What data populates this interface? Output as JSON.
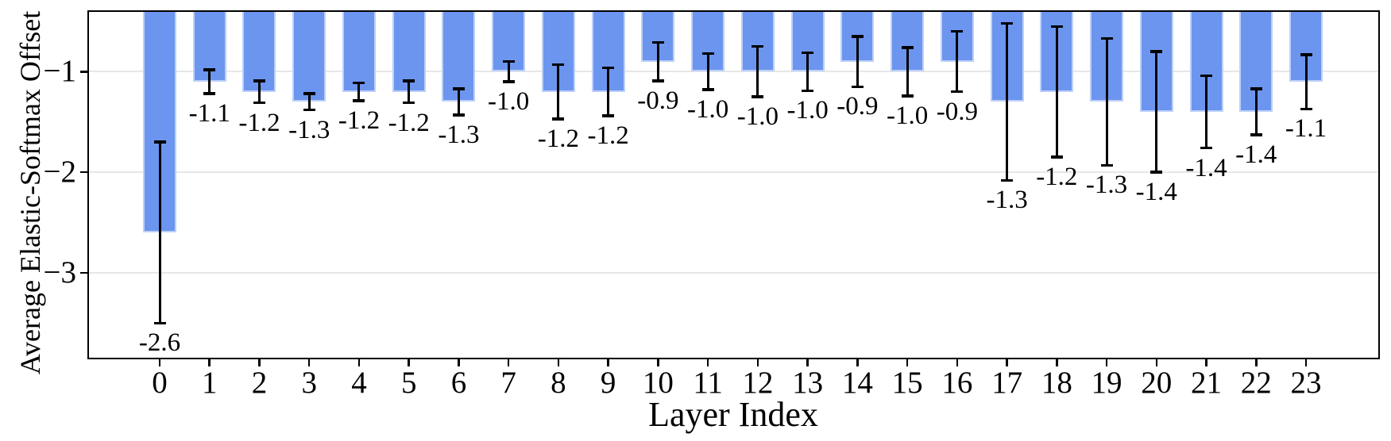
{
  "chart_data": {
    "type": "bar",
    "title": "",
    "xlabel": "Layer Index",
    "ylabel": "Average Elastic-Softmax Offset",
    "categories": [
      "0",
      "1",
      "2",
      "3",
      "4",
      "5",
      "6",
      "7",
      "8",
      "9",
      "10",
      "11",
      "12",
      "13",
      "14",
      "15",
      "16",
      "17",
      "18",
      "19",
      "20",
      "21",
      "22",
      "23"
    ],
    "values": [
      -2.6,
      -1.1,
      -1.2,
      -1.3,
      -1.2,
      -1.2,
      -1.3,
      -1.0,
      -1.2,
      -1.2,
      -0.9,
      -1.0,
      -1.0,
      -1.0,
      -0.9,
      -1.0,
      -0.9,
      -1.3,
      -1.2,
      -1.3,
      -1.4,
      -1.4,
      -1.4,
      -1.1
    ],
    "errors": [
      0.9,
      0.12,
      0.11,
      0.08,
      0.09,
      0.11,
      0.13,
      0.1,
      0.27,
      0.24,
      0.19,
      0.18,
      0.25,
      0.19,
      0.25,
      0.24,
      0.3,
      0.78,
      0.65,
      0.63,
      0.6,
      0.36,
      0.23,
      0.27
    ],
    "bar_labels": [
      "-2.6",
      "-1.1",
      "-1.2",
      "-1.3",
      "-1.2",
      "-1.2",
      "-1.3",
      "-1.0",
      "-1.2",
      "-1.2",
      "-0.9",
      "-1.0",
      "-1.0",
      "-1.0",
      "-0.9",
      "-1.0",
      "-0.9",
      "-1.3",
      "-1.2",
      "-1.3",
      "-1.4",
      "-1.4",
      "-1.4",
      "-1.1"
    ],
    "yticks": [
      {
        "value": -1,
        "label": "−1"
      },
      {
        "value": -2,
        "label": "−2"
      },
      {
        "value": -3,
        "label": "−3"
      }
    ],
    "ylim": [
      -3.86,
      -0.39
    ],
    "grid": "horizontal",
    "legend": "none",
    "bars_start_at": "axis-top (values are negative offsets)",
    "colors": {
      "bar_fill": "#6c95ef",
      "bar_edge": "#bdd0f8",
      "error_bar": "#000000",
      "grid_line": "#e7e7e7",
      "spine": "#000000",
      "background": "#ffffff",
      "text": "#000000"
    }
  }
}
